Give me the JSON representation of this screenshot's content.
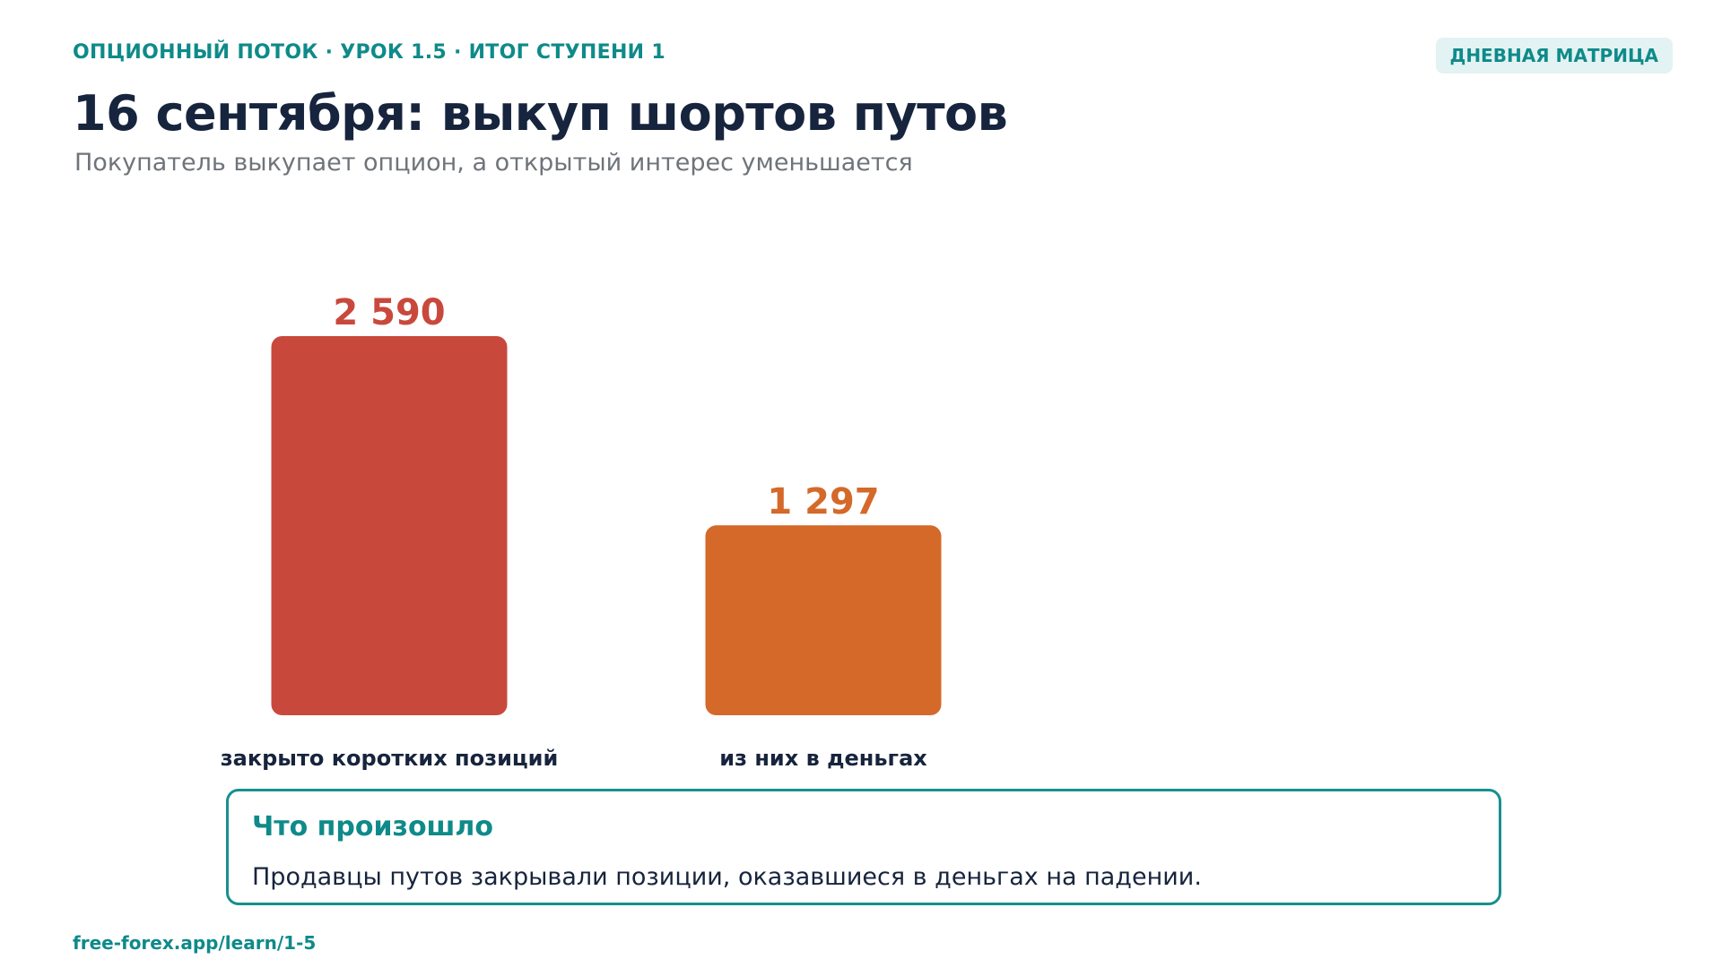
{
  "header": {
    "kicker": "ОПЦИОННЫЙ ПОТОК · УРОК 1.5 · ИТОГ СТУПЕНИ 1",
    "badge": "ДНЕВНАЯ МАТРИЦА",
    "title": "16 сентября: выкуп шортов путов",
    "subtitle": "Покупатель выкупает опцион, а открытый интерес уменьшается"
  },
  "chart_data": {
    "type": "bar",
    "categories": [
      "закрыто коротких позиций",
      "из них в деньгах"
    ],
    "values": [
      2590,
      1297
    ],
    "value_labels": [
      "2 590",
      "1 297"
    ],
    "colors": [
      "#c9483c",
      "#d4692a"
    ],
    "title": "",
    "xlabel": "",
    "ylabel": "",
    "ylim": [
      0,
      2590
    ],
    "grid": false,
    "legend": "none"
  },
  "callout": {
    "title": "Что произошло",
    "text": "Продавцы путов закрывали позиции, оказавшиеся в деньгах на падении."
  },
  "footer": {
    "link": "free-forex.app/learn/1-5"
  },
  "colors": {
    "accent": "#0f8a8a",
    "heading": "#17243d",
    "muted": "#6f747a"
  }
}
